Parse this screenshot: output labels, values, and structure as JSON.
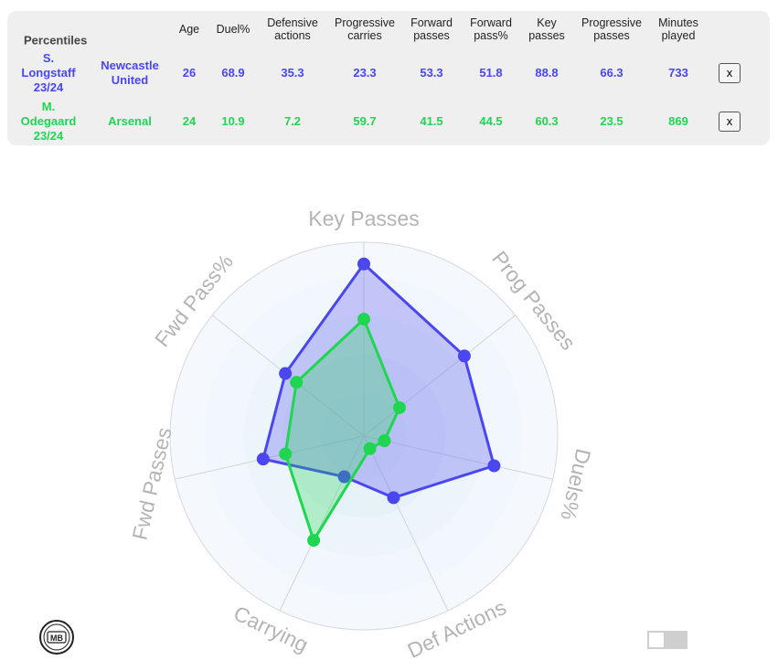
{
  "table": {
    "title": "Percentiles",
    "columns": [
      "Age",
      "Duel%",
      "Defensive\nactions",
      "Progressive\ncarries",
      "Forward\npasses",
      "Forward\npass%",
      "Key\npasses",
      "Progressive\npasses",
      "Minutes\nplayed"
    ],
    "remove_label": "x",
    "rows": [
      {
        "player": "S.\nLongstaff\n23/24",
        "team": "Newcastle\nUnited",
        "values": [
          "26",
          "68.9",
          "35.3",
          "23.3",
          "53.3",
          "51.8",
          "88.8",
          "66.3",
          "733"
        ],
        "color": "#4a46f0"
      },
      {
        "player": "M.\nOdegaard\n23/24",
        "team": "Arsenal",
        "values": [
          "24",
          "10.9",
          "7.2",
          "59.7",
          "41.5",
          "44.5",
          "60.3",
          "23.5",
          "869"
        ],
        "color": "#1ed650"
      }
    ]
  },
  "chart_data": {
    "type": "radar",
    "axes": [
      "Key Passes",
      "Prog Passes",
      "Duels%",
      "Def Actions",
      "Carrying",
      "Fwd Passes",
      "Fwd Pass%"
    ],
    "range": [
      0,
      100
    ],
    "series": [
      {
        "name": "S. Longstaff 23/24",
        "color": "#4a46f0",
        "values": [
          88.8,
          66.3,
          68.9,
          35.3,
          23.3,
          53.3,
          51.8
        ]
      },
      {
        "name": "M. Odegaard 23/24",
        "color": "#1ed650",
        "values": [
          60.3,
          23.5,
          10.9,
          7.2,
          59.7,
          41.5,
          44.5
        ]
      }
    ]
  },
  "logo_text": "MB",
  "toggle": {
    "state": "off"
  }
}
